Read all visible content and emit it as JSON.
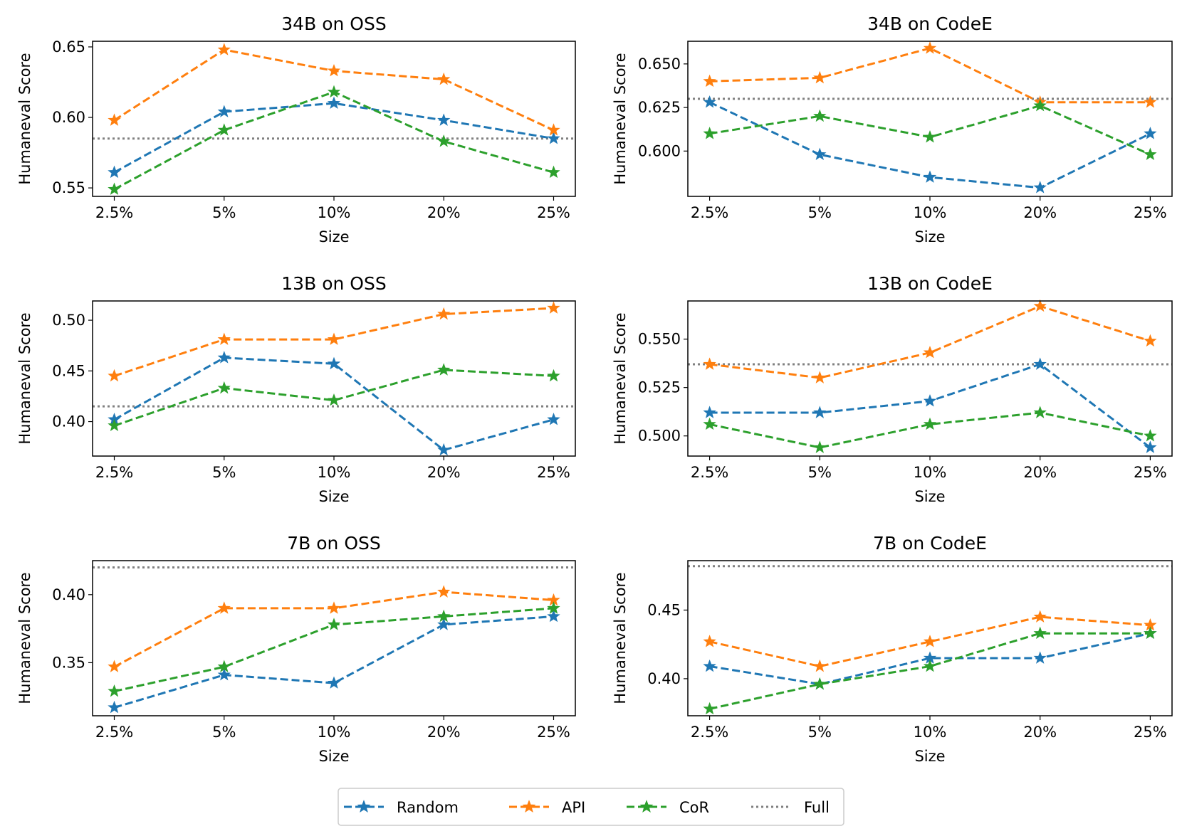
{
  "chart_data": [
    {
      "type": "line",
      "title": "34B on OSS",
      "categories": [
        "2.5%",
        "5%",
        "10%",
        "20%",
        "25%"
      ],
      "xlabel": "Size",
      "ylabel": "Humaneval Score",
      "ylim": [
        0.544,
        0.654
      ],
      "yticks": [
        0.55,
        0.6,
        0.65
      ],
      "ytick_labels": [
        "0.55",
        "0.60",
        "0.65"
      ],
      "full": 0.585,
      "series": [
        {
          "name": "Random",
          "values": [
            0.561,
            0.604,
            0.61,
            0.598,
            0.585
          ]
        },
        {
          "name": "API",
          "values": [
            0.598,
            0.648,
            0.633,
            0.627,
            0.591
          ]
        },
        {
          "name": "CoR",
          "values": [
            0.549,
            0.591,
            0.618,
            0.583,
            0.561
          ]
        }
      ]
    },
    {
      "type": "line",
      "title": "34B on CodeE",
      "categories": [
        "2.5%",
        "5%",
        "10%",
        "20%",
        "25%"
      ],
      "xlabel": "Size",
      "ylabel": "Humaneval Score",
      "ylim": [
        0.574,
        0.663
      ],
      "yticks": [
        0.6,
        0.625,
        0.65
      ],
      "ytick_labels": [
        "0.600",
        "0.625",
        "0.650"
      ],
      "full": 0.63,
      "series": [
        {
          "name": "Random",
          "values": [
            0.628,
            0.598,
            0.585,
            0.579,
            0.61
          ]
        },
        {
          "name": "API",
          "values": [
            0.64,
            0.642,
            0.659,
            0.628,
            0.628
          ]
        },
        {
          "name": "CoR",
          "values": [
            0.61,
            0.62,
            0.608,
            0.626,
            0.598
          ]
        }
      ]
    },
    {
      "type": "line",
      "title": "13B on OSS",
      "categories": [
        "2.5%",
        "5%",
        "10%",
        "20%",
        "25%"
      ],
      "xlabel": "Size",
      "ylabel": "Humaneval Score",
      "ylim": [
        0.366,
        0.519
      ],
      "yticks": [
        0.4,
        0.45,
        0.5
      ],
      "ytick_labels": [
        "0.40",
        "0.45",
        "0.50"
      ],
      "full": 0.415,
      "series": [
        {
          "name": "Random",
          "values": [
            0.402,
            0.463,
            0.457,
            0.372,
            0.402
          ]
        },
        {
          "name": "API",
          "values": [
            0.445,
            0.481,
            0.481,
            0.506,
            0.512
          ]
        },
        {
          "name": "CoR",
          "values": [
            0.396,
            0.433,
            0.421,
            0.451,
            0.445
          ]
        }
      ]
    },
    {
      "type": "line",
      "title": "13B on CodeE",
      "categories": [
        "2.5%",
        "5%",
        "10%",
        "20%",
        "25%"
      ],
      "xlabel": "Size",
      "ylabel": "Humaneval Score",
      "ylim": [
        0.4896,
        0.5697
      ],
      "yticks": [
        0.5,
        0.525,
        0.55
      ],
      "ytick_labels": [
        "0.500",
        "0.525",
        "0.550"
      ],
      "full": 0.537,
      "series": [
        {
          "name": "Random",
          "values": [
            0.512,
            0.512,
            0.518,
            0.537,
            0.494
          ]
        },
        {
          "name": "API",
          "values": [
            0.537,
            0.53,
            0.543,
            0.567,
            0.549
          ]
        },
        {
          "name": "CoR",
          "values": [
            0.506,
            0.494,
            0.506,
            0.512,
            0.5
          ]
        }
      ]
    },
    {
      "type": "line",
      "title": "7B on OSS",
      "categories": [
        "2.5%",
        "5%",
        "10%",
        "20%",
        "25%"
      ],
      "xlabel": "Size",
      "ylabel": "Humaneval Score",
      "ylim": [
        0.311,
        0.425
      ],
      "yticks": [
        0.35,
        0.4
      ],
      "ytick_labels": [
        "0.35",
        "0.40"
      ],
      "full": 0.42,
      "series": [
        {
          "name": "Random",
          "values": [
            0.317,
            0.341,
            0.335,
            0.378,
            0.384
          ]
        },
        {
          "name": "API",
          "values": [
            0.347,
            0.39,
            0.39,
            0.402,
            0.396
          ]
        },
        {
          "name": "CoR",
          "values": [
            0.329,
            0.347,
            0.378,
            0.384,
            0.39
          ]
        }
      ]
    },
    {
      "type": "line",
      "title": "7B on CodeE",
      "categories": [
        "2.5%",
        "5%",
        "10%",
        "20%",
        "25%"
      ],
      "xlabel": "Size",
      "ylabel": "Humaneval Score",
      "ylim": [
        0.373,
        0.486
      ],
      "yticks": [
        0.4,
        0.45
      ],
      "ytick_labels": [
        "0.40",
        "0.45"
      ],
      "full": 0.482,
      "series": [
        {
          "name": "Random",
          "values": [
            0.409,
            0.396,
            0.415,
            0.415,
            0.433
          ]
        },
        {
          "name": "API",
          "values": [
            0.427,
            0.409,
            0.427,
            0.445,
            0.439
          ]
        },
        {
          "name": "CoR",
          "values": [
            0.378,
            0.396,
            0.409,
            0.433,
            0.433
          ]
        }
      ]
    }
  ],
  "legend": {
    "entries": [
      {
        "label": "Random",
        "color": "#1f77b4",
        "style": "dashed",
        "marker": "star"
      },
      {
        "label": "API",
        "color": "#ff7f0e",
        "style": "dashed",
        "marker": "star"
      },
      {
        "label": "CoR",
        "color": "#2ca02c",
        "style": "dashed",
        "marker": "star"
      },
      {
        "label": "Full",
        "color": "#808080",
        "style": "dotted",
        "marker": "none"
      }
    ]
  },
  "colors": {
    "Random": "#1f77b4",
    "API": "#ff7f0e",
    "CoR": "#2ca02c",
    "Full": "#808080"
  }
}
